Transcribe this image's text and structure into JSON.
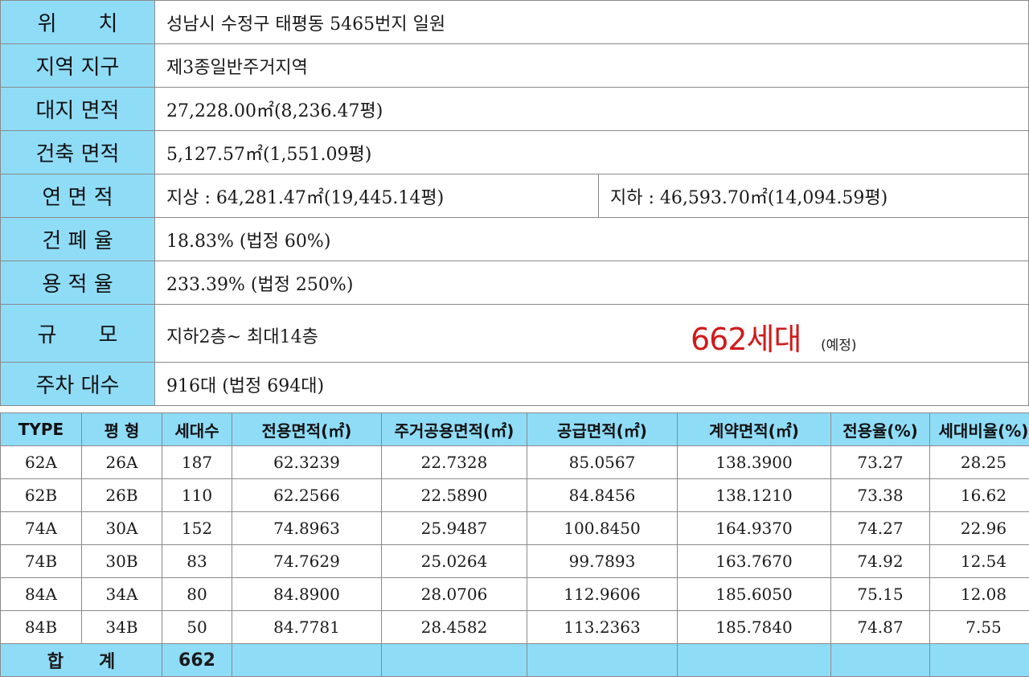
{
  "info": {
    "location": {
      "label": "위　　치",
      "value": "성남시 수정구 태평동 5465번지 일원"
    },
    "zone": {
      "label": "지역 지구",
      "value": "제3종일반주거지역"
    },
    "site_area": {
      "label": "대지 면적",
      "value": "27,228.00㎡(8,236.47평)"
    },
    "building_area": {
      "label": "건축 면적",
      "value": "5,127.57㎡(1,551.09평)"
    },
    "gross_area": {
      "label": "연 면 적",
      "above": "지상 : 64,281.47㎡(19,445.14평)",
      "below": "지하 : 46,593.70㎡(14,094.59평)"
    },
    "coverage": {
      "label": "건 폐 율",
      "value": "18.83% (법정 60%)"
    },
    "far": {
      "label": "용 적 율",
      "value": "233.39% (법정 250%)"
    },
    "scale": {
      "label": "규　　모",
      "value": "지하2층~ 최대14층",
      "units": "662세대",
      "note": "(예정)"
    },
    "parking": {
      "label": "주차 대수",
      "value": "916대 (법정 694대)"
    }
  },
  "types": {
    "headers": [
      "TYPE",
      "평 형",
      "세대수",
      "전용면적(㎡)",
      "주거공용면적(㎡)",
      "공급면적(㎡)",
      "계약면적(㎡)",
      "전용율(%)",
      "세대비율(%)"
    ],
    "rows": [
      [
        "62A",
        "26A",
        "187",
        "62.3239",
        "22.7328",
        "85.0567",
        "138.3900",
        "73.27",
        "28.25"
      ],
      [
        "62B",
        "26B",
        "110",
        "62.2566",
        "22.5890",
        "84.8456",
        "138.1210",
        "73.38",
        "16.62"
      ],
      [
        "74A",
        "30A",
        "152",
        "74.8963",
        "25.9487",
        "100.8450",
        "164.9370",
        "74.27",
        "22.96"
      ],
      [
        "74B",
        "30B",
        "83",
        "74.7629",
        "25.0264",
        "99.7893",
        "163.7670",
        "74.92",
        "12.54"
      ],
      [
        "84A",
        "34A",
        "80",
        "84.8900",
        "28.0706",
        "112.9606",
        "185.6050",
        "75.15",
        "12.08"
      ],
      [
        "84B",
        "34B",
        "50",
        "84.7781",
        "28.4582",
        "113.2363",
        "185.7840",
        "74.87",
        "7.55"
      ]
    ],
    "total": {
      "label": "합　　계",
      "count": "662"
    }
  }
}
